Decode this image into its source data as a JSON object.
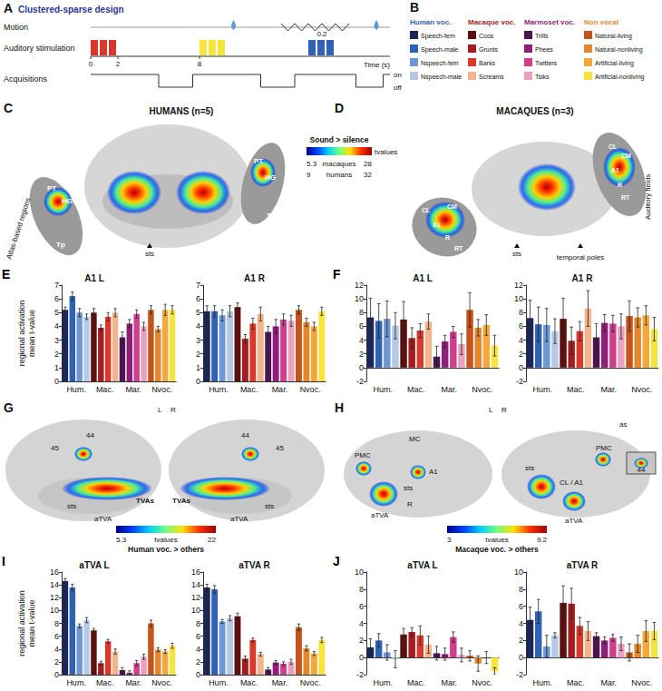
{
  "panels": {
    "A": {
      "letter": "A",
      "title": "Clustered-sparse design",
      "rows": [
        "Motion",
        "Auditory stimulation",
        "Acquisitions"
      ],
      "time_ticks": [
        0,
        2,
        8
      ],
      "interval": 0.2,
      "time_label": "Time (s)",
      "states": [
        "on",
        "off"
      ]
    },
    "B": {
      "letter": "B",
      "groups": [
        {
          "name": "Human voc.",
          "color": "#2f62b5",
          "items": [
            {
              "name": "Speech-fem",
              "color": "#1b2758"
            },
            {
              "name": "Speech-male",
              "color": "#2f62b5"
            },
            {
              "name": "Nspeech-fem",
              "color": "#6e97d3"
            },
            {
              "name": "Nspeech-male",
              "color": "#b5c9e6"
            }
          ]
        },
        {
          "name": "Macaque voc.",
          "color": "#a51d1f",
          "items": [
            {
              "name": "Coos",
              "color": "#5c1111"
            },
            {
              "name": "Grunts",
              "color": "#a51d1f"
            },
            {
              "name": "Barks",
              "color": "#d8392b"
            },
            {
              "name": "Screams",
              "color": "#f2b48a"
            }
          ]
        },
        {
          "name": "Marmoset voc.",
          "color": "#8e1e7a",
          "items": [
            {
              "name": "Trills",
              "color": "#4b1552"
            },
            {
              "name": "Phees",
              "color": "#8e1e7a"
            },
            {
              "name": "Twitters",
              "color": "#cf3f8e"
            },
            {
              "name": "Tsiks",
              "color": "#eca0c1"
            }
          ]
        },
        {
          "name": "Non vocal",
          "color": "#e5862b",
          "items": [
            {
              "name": "Natural-living",
              "color": "#c4531c"
            },
            {
              "name": "Natural-nonliving",
              "color": "#e5862b"
            },
            {
              "name": "Artificial-living",
              "color": "#f4a83c"
            },
            {
              "name": "Artificial-nonliving",
              "color": "#f6e33b"
            }
          ]
        }
      ]
    },
    "C": {
      "letter": "C",
      "title": "HUMANS (n=5)",
      "labels": [
        "PT",
        "HG",
        "Tp",
        "Atlas-based regions",
        "sts",
        "PT",
        "HG",
        "Tp"
      ]
    },
    "D": {
      "letter": "D",
      "title": "MACAQUES (n=3)",
      "labels": [
        "CL",
        "CM",
        "A1",
        "R",
        "RT",
        "sts",
        "temporal poles",
        "Auditory fields",
        "CL",
        "CM",
        "A1",
        "R",
        "RT"
      ]
    },
    "colorbar_CD": {
      "title": "Sound > silence",
      "unit": "tvalues",
      "rows": [
        {
          "name": "macaques",
          "min": 5.3,
          "max": 28
        },
        {
          "name": "humans",
          "min": 9,
          "max": 32
        }
      ]
    },
    "G": {
      "letter": "G",
      "labels": [
        "44",
        "45",
        "sts",
        "TVAs",
        "aTVA",
        "44",
        "45",
        "TVAs",
        "aTVA",
        "sts",
        "L",
        "R"
      ],
      "colorbar": {
        "title": "Human voc. > others",
        "unit": "tvalues",
        "min": 5.3,
        "max": 22
      }
    },
    "H": {
      "letter": "H",
      "labels": [
        "PMC",
        "MC",
        "A1",
        "sts",
        "R",
        "aTVA",
        "as",
        "PMC",
        "sts",
        "CL / A1",
        "aTVA",
        "44",
        "L",
        "R"
      ],
      "colorbar": {
        "title": "Macaque voc. > others",
        "unit": "tvalues",
        "min": 3,
        "max": 9.2
      }
    },
    "chart_letters": [
      "E",
      "F",
      "I",
      "J"
    ]
  },
  "chart_data": [
    {
      "type": "bar",
      "title": "A1 L",
      "ylabel": "regional activation\nmean t-value",
      "grid": false,
      "categories": [
        null,
        "Hum.",
        null,
        null,
        null,
        "Mac.",
        null,
        null,
        null,
        "Mar.",
        null,
        null,
        null,
        "Nvoc.",
        null,
        null
      ],
      "values": [
        5.2,
        6.2,
        5.0,
        4.7,
        5.0,
        3.9,
        4.7,
        5.0,
        3.2,
        4.2,
        4.9,
        4.0,
        5.2,
        3.8,
        5.2,
        5.2
      ],
      "errors": [
        0.2,
        0.3,
        0.3,
        0.2,
        0.3,
        0.2,
        0.3,
        0.3,
        0.4,
        0.3,
        0.3,
        0.3,
        0.3,
        0.2,
        0.4,
        0.3
      ],
      "colors": [
        "#1b2758",
        "#2f62b5",
        "#6e97d3",
        "#b5c9e6",
        "#5c1111",
        "#a51d1f",
        "#d8392b",
        "#f2b48a",
        "#4b1552",
        "#8e1e7a",
        "#cf3f8e",
        "#eca0c1",
        "#c4531c",
        "#e5862b",
        "#f4a83c",
        "#f6e33b"
      ],
      "ylim": [
        0,
        7
      ],
      "yticks": [
        0,
        1,
        2,
        3,
        4,
        5,
        6,
        7
      ]
    },
    {
      "type": "bar",
      "title": "A1 R",
      "grid": false,
      "categories": [
        null,
        "Hum.",
        null,
        null,
        null,
        "Mac.",
        null,
        null,
        null,
        "Mar.",
        null,
        null,
        null,
        "Nvoc.",
        null,
        null
      ],
      "values": [
        5.1,
        5.1,
        4.8,
        5.1,
        5.4,
        3.1,
        4.2,
        4.9,
        3.6,
        4.0,
        4.5,
        4.4,
        5.2,
        4.3,
        4.0,
        5.1
      ],
      "errors": [
        0.4,
        0.4,
        0.4,
        0.4,
        0.3,
        0.3,
        0.4,
        0.5,
        0.4,
        0.5,
        0.4,
        0.4,
        0.3,
        0.3,
        0.3,
        0.3
      ],
      "colors": [
        "#1b2758",
        "#2f62b5",
        "#6e97d3",
        "#b5c9e6",
        "#5c1111",
        "#a51d1f",
        "#d8392b",
        "#f2b48a",
        "#4b1552",
        "#8e1e7a",
        "#cf3f8e",
        "#eca0c1",
        "#c4531c",
        "#e5862b",
        "#f4a83c",
        "#f6e33b"
      ],
      "ylim": [
        0,
        7
      ],
      "yticks": [
        0,
        1,
        2,
        3,
        4,
        5,
        6,
        7
      ]
    },
    {
      "type": "bar",
      "title": "A1 L",
      "grid": false,
      "categories": [
        null,
        "Hum.",
        null,
        null,
        null,
        "Mac.",
        null,
        null,
        null,
        "Mar.",
        null,
        null,
        null,
        "Nvoc.",
        null,
        null
      ],
      "values": [
        7.3,
        6.8,
        7.1,
        6.1,
        7.0,
        4.3,
        5.4,
        6.7,
        1.6,
        3.8,
        5.2,
        3.4,
        8.4,
        5.8,
        6.2,
        3.2
      ],
      "errors": [
        2.8,
        2.5,
        2.6,
        1.9,
        2.6,
        1.5,
        1.0,
        1.1,
        1.5,
        0.9,
        0.8,
        1.5,
        2.5,
        1.2,
        1.5,
        1.5
      ],
      "colors": [
        "#1b2758",
        "#2f62b5",
        "#6e97d3",
        "#b5c9e6",
        "#5c1111",
        "#a51d1f",
        "#d8392b",
        "#f2b48a",
        "#4b1552",
        "#8e1e7a",
        "#cf3f8e",
        "#eca0c1",
        "#c4531c",
        "#e5862b",
        "#f4a83c",
        "#f6e33b"
      ],
      "ylim": [
        -2,
        12
      ],
      "yticks": [
        -2,
        0,
        2,
        4,
        6,
        8,
        10,
        12
      ]
    },
    {
      "type": "bar",
      "title": "A1 R",
      "grid": false,
      "categories": [
        null,
        "Hum.",
        null,
        null,
        null,
        "Mac.",
        null,
        null,
        null,
        "Mar.",
        null,
        null,
        null,
        "Nvoc.",
        null,
        null
      ],
      "values": [
        7.2,
        6.3,
        6.2,
        5.3,
        7.1,
        3.9,
        5.3,
        8.6,
        4.4,
        6.5,
        6.4,
        6.0,
        7.5,
        7.3,
        7.6,
        5.6
      ],
      "errors": [
        2.6,
        2.5,
        2.4,
        1.8,
        3.0,
        2.0,
        1.4,
        2.6,
        2.0,
        1.2,
        1.2,
        1.8,
        2.2,
        1.4,
        1.4,
        1.7
      ],
      "colors": [
        "#1b2758",
        "#2f62b5",
        "#6e97d3",
        "#b5c9e6",
        "#5c1111",
        "#a51d1f",
        "#d8392b",
        "#f2b48a",
        "#4b1552",
        "#8e1e7a",
        "#cf3f8e",
        "#eca0c1",
        "#c4531c",
        "#e5862b",
        "#f4a83c",
        "#f6e33b"
      ],
      "ylim": [
        -2,
        12
      ],
      "yticks": [
        -2,
        0,
        2,
        4,
        6,
        8,
        10,
        12
      ]
    },
    {
      "type": "bar",
      "title": "aTVA L",
      "ylabel": "regional activation\nmean t-value",
      "grid": false,
      "categories": [
        null,
        "Hum.",
        null,
        null,
        null,
        "Mac.",
        null,
        null,
        null,
        "Mar.",
        null,
        null,
        null,
        "Nvoc.",
        null,
        null
      ],
      "values": [
        14.6,
        13.6,
        7.6,
        8.5,
        6.9,
        1.8,
        5.2,
        3.6,
        0.7,
        0.3,
        1.8,
        2.8,
        8.0,
        3.9,
        3.6,
        4.5
      ],
      "errors": [
        0.4,
        0.5,
        0.3,
        0.4,
        0.3,
        0.3,
        0.3,
        0.4,
        0.4,
        0.3,
        0.4,
        0.4,
        0.5,
        0.3,
        0.3,
        0.4
      ],
      "colors": [
        "#1b2758",
        "#2f62b5",
        "#6e97d3",
        "#b5c9e6",
        "#5c1111",
        "#a51d1f",
        "#d8392b",
        "#f2b48a",
        "#4b1552",
        "#8e1e7a",
        "#cf3f8e",
        "#eca0c1",
        "#c4531c",
        "#e5862b",
        "#f4a83c",
        "#f6e33b"
      ],
      "ylim": [
        0,
        16
      ],
      "yticks": [
        0,
        2,
        4,
        6,
        8,
        10,
        12,
        14,
        16
      ]
    },
    {
      "type": "bar",
      "title": "aTVA R",
      "grid": false,
      "categories": [
        null,
        "Hum.",
        null,
        null,
        null,
        "Mac.",
        null,
        null,
        null,
        "Mar.",
        null,
        null,
        null,
        "Nvoc.",
        null,
        null
      ],
      "values": [
        13.6,
        13.3,
        8.3,
        8.8,
        9.1,
        2.5,
        5.4,
        3.2,
        0.8,
        1.9,
        1.7,
        2.0,
        7.4,
        4.1,
        3.3,
        5.4
      ],
      "errors": [
        0.5,
        0.6,
        0.3,
        0.4,
        0.5,
        0.4,
        0.3,
        0.3,
        0.3,
        0.3,
        0.3,
        0.4,
        0.5,
        0.4,
        0.3,
        0.4
      ],
      "colors": [
        "#1b2758",
        "#2f62b5",
        "#6e97d3",
        "#b5c9e6",
        "#5c1111",
        "#a51d1f",
        "#d8392b",
        "#f2b48a",
        "#4b1552",
        "#8e1e7a",
        "#cf3f8e",
        "#eca0c1",
        "#c4531c",
        "#e5862b",
        "#f4a83c",
        "#f6e33b"
      ],
      "ylim": [
        0,
        16
      ],
      "yticks": [
        0,
        2,
        4,
        6,
        8,
        10,
        12,
        14,
        16
      ]
    },
    {
      "type": "bar",
      "title": "aTVA L",
      "grid": false,
      "categories": [
        null,
        "Hum.",
        null,
        null,
        null,
        "Mac.",
        null,
        null,
        null,
        "Mar.",
        null,
        null,
        null,
        "Nvoc.",
        null,
        null
      ],
      "values": [
        1.2,
        2.0,
        0.6,
        -0.2,
        2.7,
        3.0,
        2.6,
        1.5,
        0.5,
        0.4,
        2.4,
        0.3,
        0.2,
        -0.7,
        0.0,
        -1.6
      ],
      "errors": [
        1.0,
        0.8,
        0.9,
        1.0,
        0.7,
        0.5,
        1.1,
        1.0,
        0.8,
        0.7,
        0.6,
        0.8,
        0.6,
        0.9,
        0.7,
        0.4
      ],
      "colors": [
        "#1b2758",
        "#2f62b5",
        "#6e97d3",
        "#b5c9e6",
        "#5c1111",
        "#a51d1f",
        "#d8392b",
        "#f2b48a",
        "#4b1552",
        "#8e1e7a",
        "#cf3f8e",
        "#eca0c1",
        "#c4531c",
        "#e5862b",
        "#f4a83c",
        "#f6e33b"
      ],
      "ylim": [
        -2,
        10
      ],
      "yticks": [
        -2,
        0,
        2,
        4,
        6,
        8,
        10
      ]
    },
    {
      "type": "bar",
      "title": "aTVA R",
      "grid": false,
      "categories": [
        null,
        "Hum.",
        null,
        null,
        null,
        "Mac.",
        null,
        null,
        null,
        "Mar.",
        null,
        null,
        null,
        "Nvoc.",
        null,
        null
      ],
      "values": [
        4.4,
        5.4,
        1.3,
        2.6,
        6.4,
        6.3,
        3.7,
        3.1,
        2.5,
        2.0,
        2.3,
        1.6,
        0.6,
        1.6,
        3.1,
        3.1
      ],
      "errors": [
        1.5,
        1.4,
        1.3,
        0.3,
        2.0,
        1.8,
        1.0,
        1.1,
        0.4,
        0.4,
        0.4,
        0.8,
        1.0,
        1.0,
        1.2,
        1.0
      ],
      "colors": [
        "#1b2758",
        "#2f62b5",
        "#6e97d3",
        "#b5c9e6",
        "#5c1111",
        "#a51d1f",
        "#d8392b",
        "#f2b48a",
        "#4b1552",
        "#8e1e7a",
        "#cf3f8e",
        "#eca0c1",
        "#c4531c",
        "#e5862b",
        "#f4a83c",
        "#f6e33b"
      ],
      "ylim": [
        -2,
        10
      ],
      "yticks": [
        -2,
        0,
        2,
        4,
        6,
        8,
        10
      ]
    }
  ]
}
